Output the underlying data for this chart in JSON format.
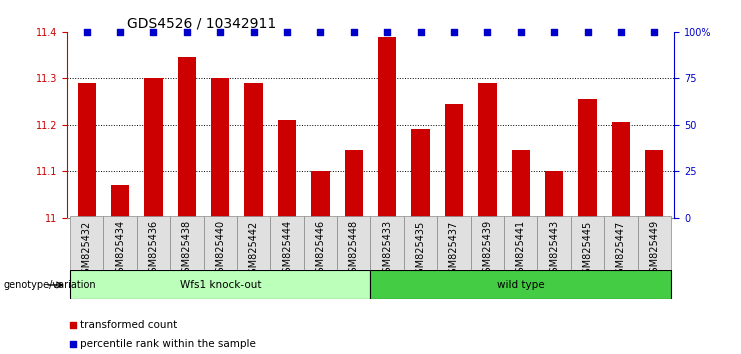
{
  "title": "GDS4526 / 10342911",
  "samples": [
    "GSM825432",
    "GSM825434",
    "GSM825436",
    "GSM825438",
    "GSM825440",
    "GSM825442",
    "GSM825444",
    "GSM825446",
    "GSM825448",
    "GSM825433",
    "GSM825435",
    "GSM825437",
    "GSM825439",
    "GSM825441",
    "GSM825443",
    "GSM825445",
    "GSM825447",
    "GSM825449"
  ],
  "bar_values": [
    11.29,
    11.07,
    11.3,
    11.345,
    11.3,
    11.29,
    11.21,
    11.1,
    11.145,
    11.39,
    11.19,
    11.245,
    11.29,
    11.145,
    11.1,
    11.255,
    11.205,
    11.145
  ],
  "percentile_values": [
    100,
    100,
    100,
    100,
    100,
    100,
    100,
    100,
    100,
    100,
    100,
    100,
    100,
    100,
    100,
    100,
    100,
    100
  ],
  "bar_color": "#cc0000",
  "percentile_color": "#0000cc",
  "ylim_left": [
    11.0,
    11.4
  ],
  "ylim_right": [
    0,
    100
  ],
  "yticks_left": [
    11.0,
    11.1,
    11.2,
    11.3,
    11.4
  ],
  "ytick_labels_left": [
    "11",
    "11.1",
    "11.2",
    "11.3",
    "11.4"
  ],
  "yticks_right": [
    0,
    25,
    50,
    75,
    100
  ],
  "ytick_labels_right": [
    "0",
    "25",
    "50",
    "75",
    "100%"
  ],
  "grid_values": [
    11.1,
    11.2,
    11.3
  ],
  "group1_label": "Wfs1 knock-out",
  "group2_label": "wild type",
  "group1_color": "#bbffbb",
  "group2_color": "#44cc44",
  "group1_count": 9,
  "genotype_label": "genotype/variation",
  "legend_bar_label": "transformed count",
  "legend_perc_label": "percentile rank within the sample",
  "bar_width": 0.55,
  "title_fontsize": 10,
  "tick_fontsize": 7,
  "label_fontsize": 7.5
}
